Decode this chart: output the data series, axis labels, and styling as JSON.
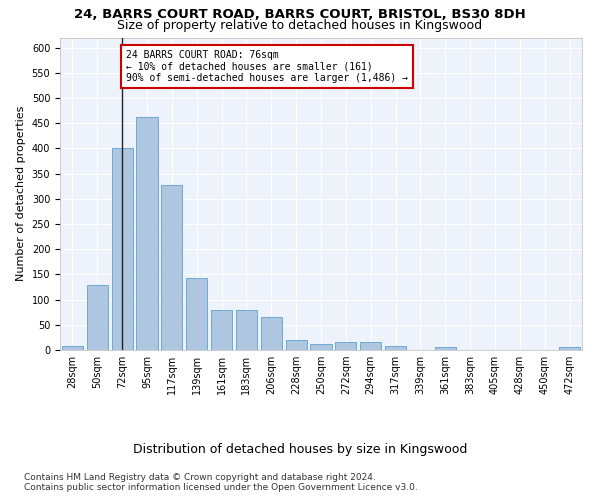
{
  "title1": "24, BARRS COURT ROAD, BARRS COURT, BRISTOL, BS30 8DH",
  "title2": "Size of property relative to detached houses in Kingswood",
  "xlabel": "Distribution of detached houses by size in Kingswood",
  "ylabel": "Number of detached properties",
  "bar_color": "#aec6e0",
  "bar_edge_color": "#6aaad4",
  "annotation_line1": "24 BARRS COURT ROAD: 76sqm",
  "annotation_line2": "← 10% of detached houses are smaller (161)",
  "annotation_line3": "90% of semi-detached houses are larger (1,486) →",
  "annotation_box_color": "#cc0000",
  "vline_color": "#222222",
  "vline_x_index": 2,
  "categories": [
    "28sqm",
    "50sqm",
    "72sqm",
    "95sqm",
    "117sqm",
    "139sqm",
    "161sqm",
    "183sqm",
    "206sqm",
    "228sqm",
    "250sqm",
    "272sqm",
    "294sqm",
    "317sqm",
    "339sqm",
    "361sqm",
    "383sqm",
    "405sqm",
    "428sqm",
    "450sqm",
    "472sqm"
  ],
  "values": [
    8,
    128,
    400,
    463,
    328,
    143,
    79,
    79,
    65,
    20,
    11,
    15,
    15,
    8,
    0,
    5,
    0,
    0,
    0,
    0,
    5
  ],
  "ylim": [
    0,
    620
  ],
  "yticks": [
    0,
    50,
    100,
    150,
    200,
    250,
    300,
    350,
    400,
    450,
    500,
    550,
    600
  ],
  "footnote1": "Contains HM Land Registry data © Crown copyright and database right 2024.",
  "footnote2": "Contains public sector information licensed under the Open Government Licence v3.0.",
  "bg_color": "#eef2fa",
  "grid_color": "#ffffff",
  "title1_fontsize": 9.5,
  "title2_fontsize": 9,
  "xlabel_fontsize": 9,
  "ylabel_fontsize": 8,
  "tick_fontsize": 7,
  "footnote_fontsize": 6.5
}
